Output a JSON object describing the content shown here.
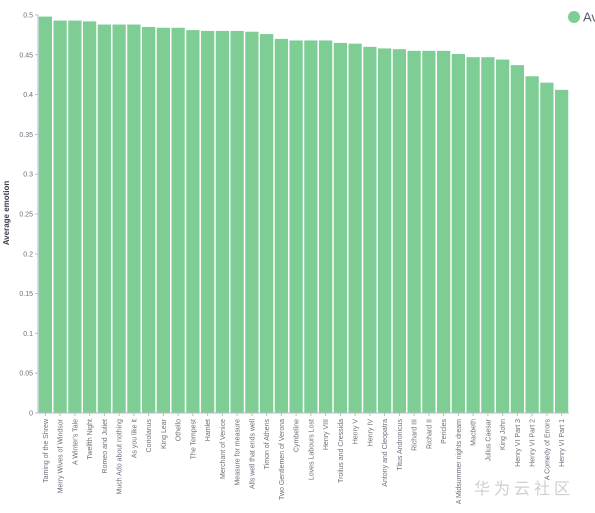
{
  "chart_data": {
    "type": "bar",
    "ylabel": "Average emotion",
    "xlabel": "",
    "ylim": [
      0,
      0.5
    ],
    "yticks": [
      "0",
      "0.05",
      "0.1",
      "0.15",
      "0.2",
      "0.25",
      "0.3",
      "0.35",
      "0.4",
      "0.45",
      "0.5"
    ],
    "grid": false,
    "legend": {
      "position": "top-right",
      "label": "Av"
    },
    "colors": {
      "bar": "#7dcd94",
      "axis": "#b9bdc6"
    },
    "categories": [
      "Taming of the Shrew",
      "Merry Wives of Windsor",
      "A Winter's Tale",
      "Twelfth Night",
      "Romeo and Juliet",
      "Much Ado about nothing",
      "As you like it",
      "Coriolanus",
      "King Lear",
      "Othello",
      "The Tempest",
      "Hamlet",
      "Merchant of Venice",
      "Measure for measure",
      "Alls well that ends well",
      "Timon of Athens",
      "Two Gentlemen of Verona",
      "Cymbeline",
      "Loves Labours Lost",
      "Henry VIII",
      "Troilus and Cressida",
      "Henry V",
      "Henry IV",
      "Antony and Cleopatra",
      "Titus Andronicus",
      "Richard III",
      "Richard II",
      "Pericles",
      "A Midsummer nights dream",
      "Macbeth",
      "Julius Caesar",
      "King John",
      "Henry VI Part 3",
      "Henry VI Part 2",
      "A Comedy of Errors",
      "Henry VI Part 1"
    ],
    "values": [
      0.498,
      0.493,
      0.493,
      0.492,
      0.488,
      0.488,
      0.488,
      0.485,
      0.484,
      0.484,
      0.481,
      0.48,
      0.48,
      0.48,
      0.479,
      0.476,
      0.47,
      0.468,
      0.468,
      0.468,
      0.465,
      0.464,
      0.46,
      0.458,
      0.457,
      0.455,
      0.455,
      0.455,
      0.451,
      0.447,
      0.447,
      0.444,
      0.437,
      0.423,
      0.415,
      0.406
    ]
  },
  "watermark": "华为云社区"
}
